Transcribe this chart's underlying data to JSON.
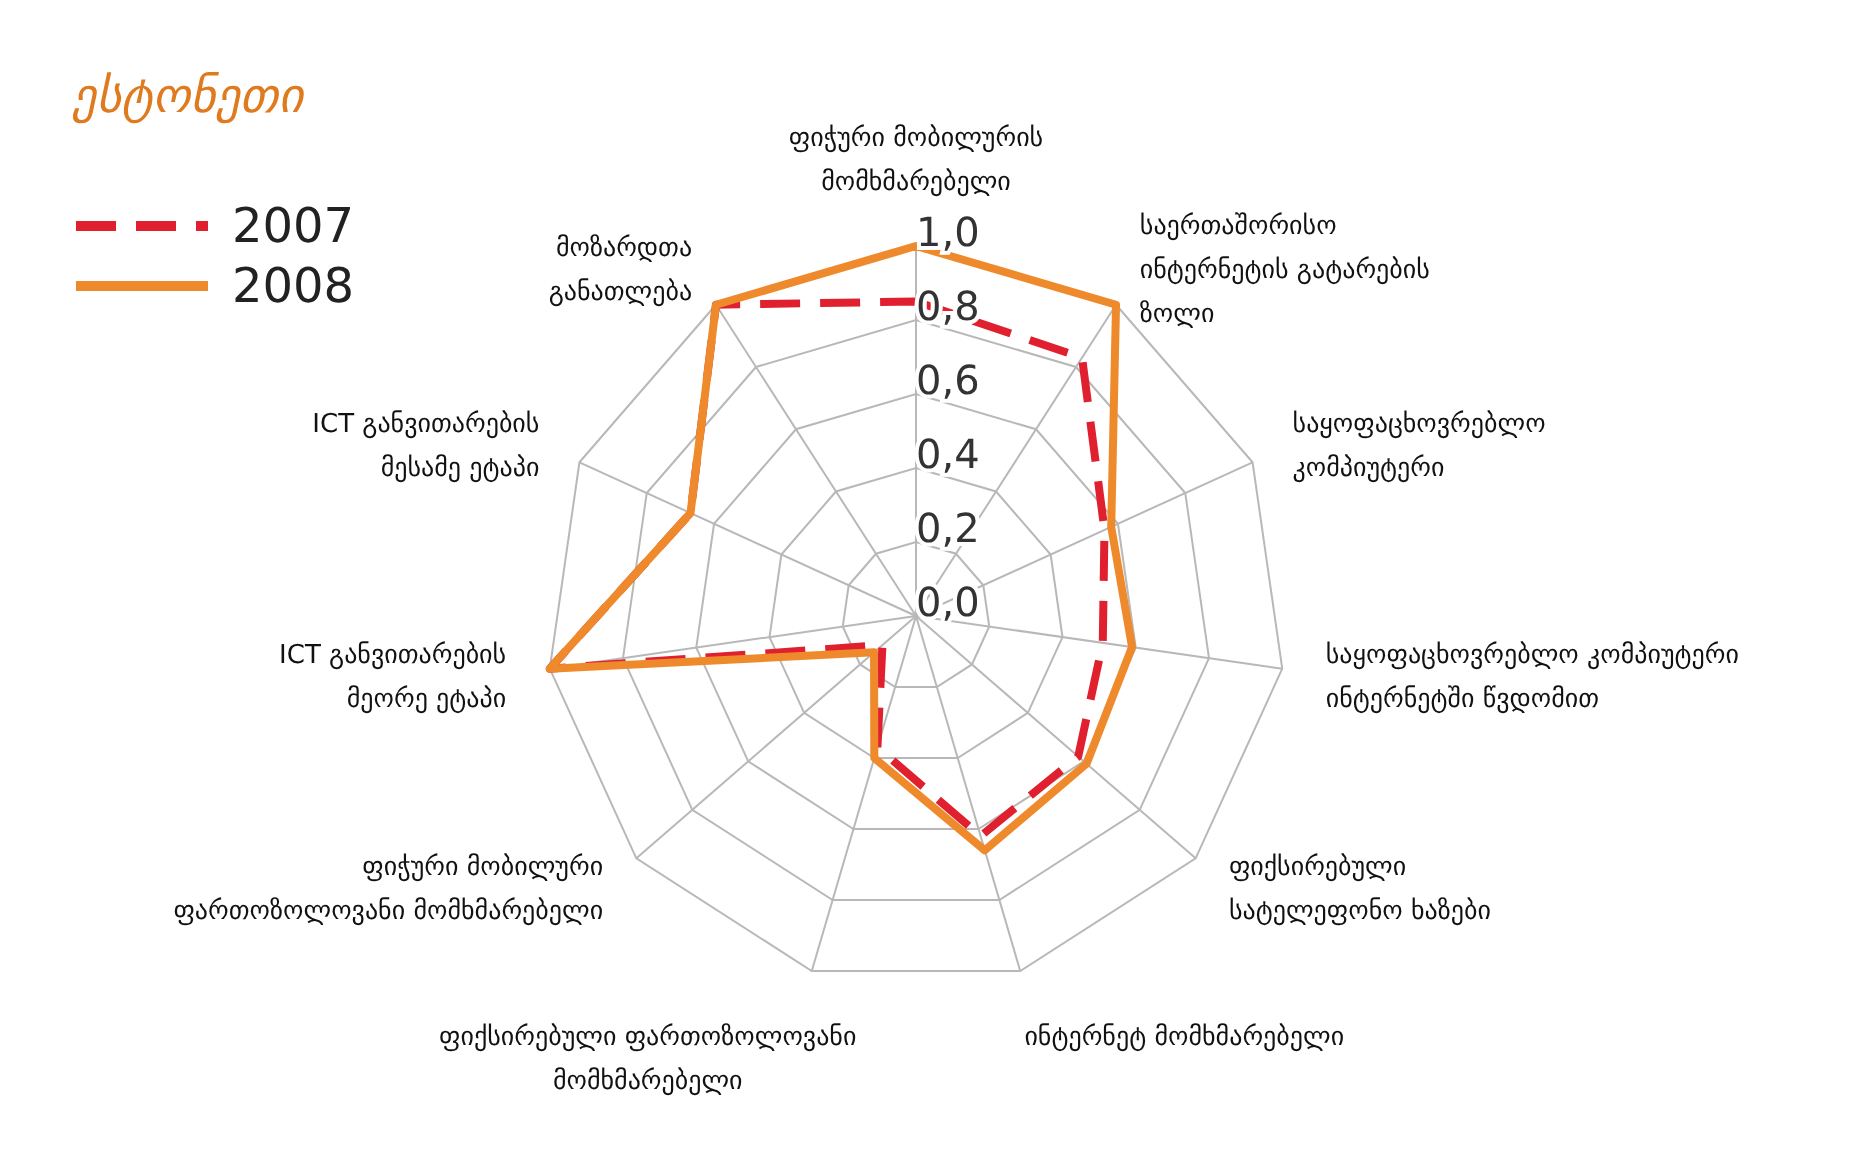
{
  "chart_data": {
    "type": "radar",
    "title": "ესტონეთი",
    "categories": [
      "ფიჭური მობილურის\nმომხმარებელი",
      "საერთაშორისო\nინტერნეტის გატარების\nზოლი",
      "საყოფაცხოვრებლო\nკომპიუტერი",
      "საყოფაცხოვრებლო კომპიუტერი\nინტერნეტში წვდომით",
      "ფიქსირებული\nსატელეფონო ხაზები",
      "ინტერნეტ მომხმარებელი",
      "ფიქსირებული ფართოზოლოვანი\nმომხმარებელი",
      "ფიჭური მობილური\nფართოზოლოვანი მომხმარებელი",
      "ICT განვითარების\nმეორე ეტაპი",
      "ICT განვითარების\nმესამე ეტაპი",
      "მოზარდთა\nგანათლება"
    ],
    "series": [
      {
        "name": "2007",
        "color": "#e0202e",
        "line_style": "dashed",
        "values": [
          0.85,
          0.83,
          0.56,
          0.51,
          0.58,
          0.62,
          0.37,
          0.12,
          1.0,
          0.67,
          1.0
        ]
      },
      {
        "name": "2008",
        "color": "#ee8a2c",
        "line_style": "solid",
        "values": [
          1.0,
          1.0,
          0.58,
          0.59,
          0.61,
          0.66,
          0.4,
          0.15,
          1.0,
          0.67,
          1.0
        ]
      }
    ],
    "ylim": [
      0,
      1
    ],
    "yticks": [
      {
        "value": 0,
        "label": "0,0"
      },
      {
        "value": 0.2,
        "label": "0,2"
      },
      {
        "value": 0.4,
        "label": "0,4"
      },
      {
        "value": 0.6,
        "label": "0,6"
      },
      {
        "value": 0.8,
        "label": "0,8"
      },
      {
        "value": 1,
        "label": "1,0"
      }
    ],
    "grid": true,
    "legend": "top left",
    "marker": "none"
  }
}
